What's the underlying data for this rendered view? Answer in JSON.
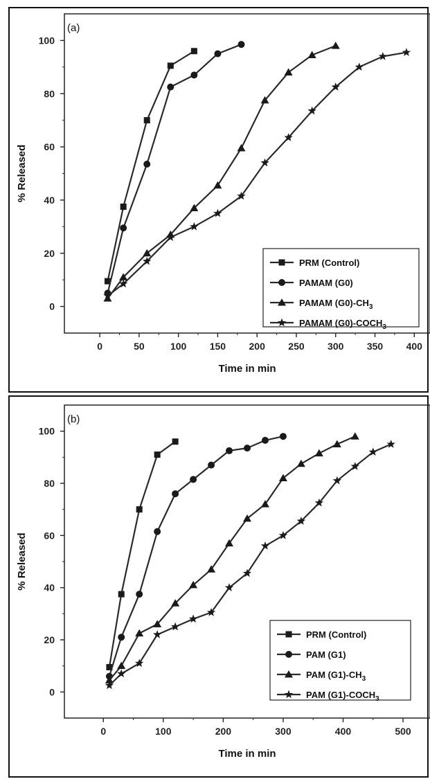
{
  "chart_data": [
    {
      "type": "line",
      "panel_label": "(a)",
      "xlabel": "Time in min",
      "ylabel": "% Released",
      "xlim": [
        -45,
        420
      ],
      "ylim": [
        -10,
        110
      ],
      "xticks": [
        0,
        50,
        100,
        150,
        200,
        250,
        300,
        350,
        400
      ],
      "yticks": [
        0,
        20,
        40,
        60,
        80,
        100
      ],
      "grid": false,
      "legend_position": "bottom-right",
      "series": [
        {
          "name": "PRM (Control)",
          "marker": "square",
          "x": [
            10,
            30,
            60,
            90,
            120
          ],
          "y": [
            9.5,
            37.5,
            70,
            90.5,
            96
          ]
        },
        {
          "name": "PAMAM (G0)",
          "marker": "circle",
          "x": [
            10,
            30,
            60,
            90,
            120,
            150,
            180
          ],
          "y": [
            5,
            29.5,
            53.5,
            82.5,
            87,
            95,
            98.5
          ]
        },
        {
          "name": "PAMAM (G0)-CH3",
          "marker": "triangle",
          "x": [
            10,
            30,
            60,
            90,
            120,
            150,
            180,
            210,
            240,
            270,
            300
          ],
          "y": [
            3,
            11,
            20,
            27,
            37,
            45.5,
            59.5,
            77.5,
            88,
            94.5,
            98
          ]
        },
        {
          "name": "PAMAM (G0)-COCH3",
          "marker": "star",
          "x": [
            10,
            30,
            60,
            90,
            120,
            150,
            180,
            210,
            240,
            270,
            300,
            330,
            360,
            390
          ],
          "y": [
            4,
            8.5,
            17,
            26,
            30,
            35,
            41.5,
            54,
            63.5,
            73.5,
            82.5,
            90,
            94,
            95.5
          ]
        }
      ]
    },
    {
      "type": "line",
      "panel_label": "(b)",
      "xlabel": "Time in min",
      "ylabel": "% Released",
      "xlim": [
        -65,
        545
      ],
      "ylim": [
        -10,
        110
      ],
      "xticks": [
        0,
        100,
        200,
        300,
        400,
        500
      ],
      "yticks": [
        0,
        20,
        40,
        60,
        80,
        100
      ],
      "grid": false,
      "legend_position": "bottom-right",
      "series": [
        {
          "name": "PRM (Control)",
          "marker": "square",
          "x": [
            10,
            30,
            60,
            90,
            120
          ],
          "y": [
            9.5,
            37.5,
            70,
            91,
            96
          ]
        },
        {
          "name": "PAM (G1)",
          "marker": "circle",
          "x": [
            10,
            30,
            60,
            90,
            120,
            150,
            180,
            210,
            240,
            270,
            300
          ],
          "y": [
            6,
            21,
            37.5,
            61.5,
            76,
            81.5,
            87,
            92.5,
            93.5,
            96.5,
            98
          ]
        },
        {
          "name": "PAM (G1)-CH3",
          "marker": "triangle",
          "x": [
            10,
            30,
            60,
            90,
            120,
            150,
            180,
            210,
            240,
            270,
            300,
            330,
            360,
            390,
            420
          ],
          "y": [
            4.5,
            10,
            22.5,
            26,
            34,
            41,
            47,
            57,
            66.5,
            72,
            82,
            87.5,
            91.5,
            95,
            98
          ]
        },
        {
          "name": "PAM (G1)-COCH3",
          "marker": "star",
          "x": [
            10,
            30,
            60,
            90,
            120,
            150,
            180,
            210,
            240,
            270,
            300,
            330,
            360,
            390,
            420,
            450,
            480
          ],
          "y": [
            2.5,
            7,
            11,
            22,
            25,
            28,
            30.5,
            40,
            45.5,
            56,
            60,
            65.5,
            72.5,
            81,
            86.5,
            92,
            95
          ]
        }
      ]
    }
  ]
}
